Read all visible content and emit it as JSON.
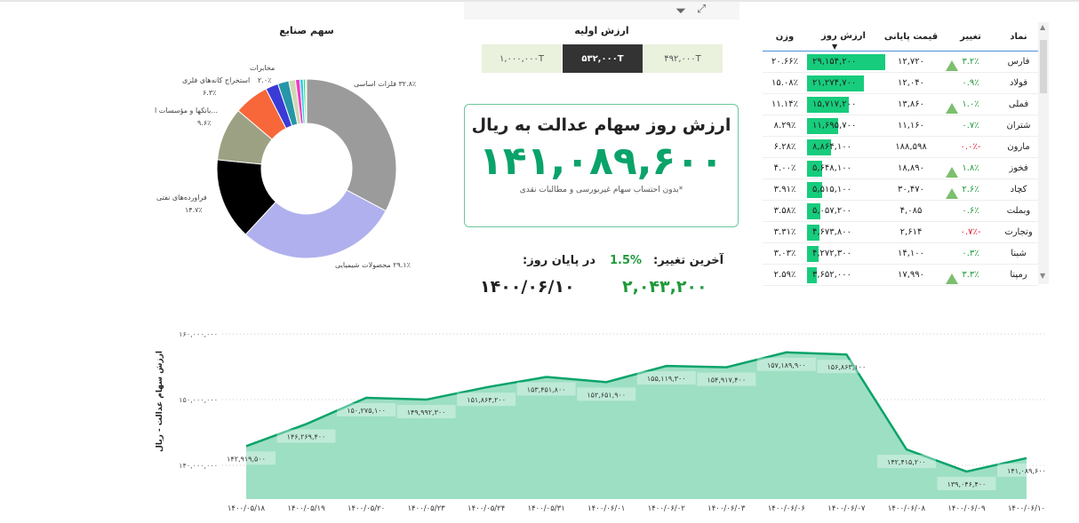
{
  "toolbar": {
    "filter_icon": "filter-icon",
    "expand_icon": "focus-mode-icon"
  },
  "pie": {
    "title": "سهم صنایع",
    "slices": [
      {
        "name": "فلزات اساسی",
        "value": 32.8,
        "label": "۳۲.۸٪ فلزات اساسی",
        "color": "#9b9b9b"
      },
      {
        "name": "محصولات شیمیایی",
        "value": 29.1,
        "label": "۲۹.۱٪ محصولات شیمیایی",
        "color": "#b0b0ee"
      },
      {
        "name": "فراورده‌های نفتی",
        "value": 14.7,
        "label": "فراورده‌های نفتی",
        "pct": "۱۴.۷٪",
        "color": "#000000"
      },
      {
        "name": "بانکها و مؤسسات اعتباری",
        "value": 9.6,
        "label": "...بانکها و مؤسسات ا",
        "pct": "۹.۶٪",
        "color": "#9da183"
      },
      {
        "name": "استخراج کانه‌های فلزی",
        "value": 6.3,
        "label": "استخراج کانه‌های فلزی",
        "pct": "۶.۳٪",
        "color": "#f7673a"
      },
      {
        "name": "other-blue",
        "value": 2.3,
        "color": "#3a3ad6"
      },
      {
        "name": "مخابرات",
        "value": 2.0,
        "label": "مخابرات",
        "pct": "۲.۰٪",
        "color": "#2796a8"
      },
      {
        "name": "other-beige",
        "value": 1.2,
        "color": "#cfd8b0"
      },
      {
        "name": "other-pink",
        "value": 0.8,
        "color": "#f03cc8"
      },
      {
        "name": "other-cyan",
        "value": 0.6,
        "color": "#2ad0e0"
      },
      {
        "name": "other-green",
        "value": 0.4,
        "color": "#3fd080"
      },
      {
        "name": "other-grey",
        "value": 0.2,
        "color": "#bbbbbb"
      }
    ]
  },
  "initial_value": {
    "title": "ارزش اولیه",
    "options": [
      "۱,۰۰۰,۰۰۰T",
      "۵۳۲,۰۰۰T",
      "۴۹۲,۰۰۰T"
    ],
    "selected": "۵۳۲,۰۰۰T"
  },
  "card": {
    "title": "ارزش روز سهام عدالت به ریال",
    "value": "۱۴۱,۰۸۹,۶۰۰",
    "note": "*بدون احتساب سهام غیربورسی و مطالبات نقدی"
  },
  "summary": {
    "last_change_label": "آخرین تغییر:",
    "last_change_pct": "1.5%",
    "last_change_value": "۲,۰۴۳,۲۰۰",
    "end_of_day_label": "در پایان روز:",
    "date": "۱۴۰۰/۰۶/۱۰"
  },
  "table": {
    "headers": [
      "نماد",
      "تغییر",
      "قیمت پایانی",
      "ارزش روز",
      "وزن"
    ],
    "sort_column": "ارزش روز",
    "rows": [
      {
        "symbol": "فارس",
        "change": "۳.۲٪",
        "up": true,
        "neg": false,
        "price": "۱۲,۷۲۰",
        "value": "۲۹,۱۵۴,۲۰۰",
        "raw": 29154200,
        "weight": "۲۰.۶۶٪"
      },
      {
        "symbol": "فولاد",
        "change": "۰.۹٪",
        "up": false,
        "neg": false,
        "price": "۱۲,۰۴۰",
        "value": "۲۱,۲۷۴,۷۰۰",
        "raw": 21274700,
        "weight": "۱۵.۰۸٪"
      },
      {
        "symbol": "فملی",
        "change": "۱.۰٪",
        "up": true,
        "neg": false,
        "price": "۱۳,۸۶۰",
        "value": "۱۵,۷۱۷,۲۰۰",
        "raw": 15717200,
        "weight": "۱۱.۱۴٪"
      },
      {
        "symbol": "شتران",
        "change": "۰.۷٪",
        "up": false,
        "neg": false,
        "price": "۱۱,۱۶۰",
        "value": "۱۱,۶۹۵,۷۰۰",
        "raw": 11695700,
        "weight": "۸.۲۹٪"
      },
      {
        "symbol": "مارون",
        "change": "-۰.۰٪",
        "up": false,
        "neg": true,
        "price": "۱۸۸,۵۹۸",
        "value": "۸,۸۶۴,۱۰۰",
        "raw": 8864100,
        "weight": "۶.۲۸٪"
      },
      {
        "symbol": "فخوز",
        "change": "۱.۸٪",
        "up": true,
        "neg": false,
        "price": "۱۸,۸۹۰",
        "value": "۵,۶۴۸,۱۰۰",
        "raw": 5648100,
        "weight": "۴.۰۰٪"
      },
      {
        "symbol": "کچاد",
        "change": "۲.۶٪",
        "up": true,
        "neg": false,
        "price": "۳۰,۴۷۰",
        "value": "۵,۵۱۵,۱۰۰",
        "raw": 5515100,
        "weight": "۳.۹۱٪"
      },
      {
        "symbol": "وبملت",
        "change": "۰.۶٪",
        "up": false,
        "neg": false,
        "price": "۴,۰۸۵",
        "value": "۵,۰۵۷,۲۰۰",
        "raw": 5057200,
        "weight": "۳.۵۸٪"
      },
      {
        "symbol": "وتجارت",
        "change": "-۰.۷٪",
        "up": false,
        "neg": true,
        "price": "۲,۶۱۴",
        "value": "۴,۶۷۳,۸۰۰",
        "raw": 4673800,
        "weight": "۳.۳۱٪"
      },
      {
        "symbol": "شبنا",
        "change": "۰.۳٪",
        "up": false,
        "neg": false,
        "price": "۱۴,۱۰۰",
        "value": "۴,۲۷۲,۳۰۰",
        "raw": 4272300,
        "weight": "۳.۰۳٪"
      },
      {
        "symbol": "رمپنا",
        "change": "۳.۳٪",
        "up": true,
        "neg": false,
        "price": "۱۷,۹۹۰",
        "value": "۳,۶۵۲,۰۰۰",
        "raw": 3652000,
        "weight": "۲.۵۹٪"
      }
    ]
  },
  "chart_data": {
    "type": "area",
    "ylabel": "ارزش سهام عدالت - ریال",
    "ylim": [
      137000000,
      163000000
    ],
    "yticks": [
      {
        "v": 160000000,
        "label": "۱۶۰,۰۰۰,۰۰۰"
      },
      {
        "v": 150000000,
        "label": "۱۵۰,۰۰۰,۰۰۰"
      },
      {
        "v": 140000000,
        "label": "۱۴۰,۰۰۰,۰۰۰"
      }
    ],
    "x": [
      "۱۴۰۰/۰۵/۱۸",
      "۱۴۰۰/۰۵/۱۹",
      "۱۴۰۰/۰۵/۲۰",
      "۱۴۰۰/۰۵/۲۳",
      "۱۴۰۰/۰۵/۲۴",
      "۱۴۰۰/۰۵/۳۱",
      "۱۴۰۰/۰۶/۰۱",
      "۱۴۰۰/۰۶/۰۲",
      "۱۴۰۰/۰۶/۰۳",
      "۱۴۰۰/۰۶/۰۶",
      "۱۴۰۰/۰۶/۰۷",
      "۱۴۰۰/۰۶/۰۸",
      "۱۴۰۰/۰۶/۰۹",
      "۱۴۰۰/۰۶/۱۰"
    ],
    "values": [
      142919500,
      146269400,
      150275100,
      149992300,
      151864200,
      153451800,
      152651900,
      155119300,
      154917400,
      157189900,
      156863100,
      142415200,
      139046400,
      141089600
    ],
    "labels": [
      "۱۴۲,۹۱۹,۵۰۰",
      "۱۴۶,۲۶۹,۴۰۰",
      "۱۵۰,۲۷۵,۱۰۰",
      "۱۴۹,۹۹۲,۳۰۰",
      "۱۵۱,۸۶۴,۲۰۰",
      "۱۵۳,۴۵۱,۸۰۰",
      "۱۵۲,۶۵۱,۹۰۰",
      "۱۵۵,۱۱۹,۳۰۰",
      "۱۵۴,۹۱۷,۴۰۰",
      "۱۵۷,۱۸۹,۹۰۰",
      "۱۵۶,۸۶۳,۱۰۰",
      "۱۴۲,۴۱۵,۲۰۰",
      "۱۳۹,۰۴۶,۴۰۰",
      "۱۴۱,۰۸۹,۶۰۰"
    ],
    "line_color": "#0aa36a",
    "fill_color": "#9ddfc3",
    "grid": true
  }
}
